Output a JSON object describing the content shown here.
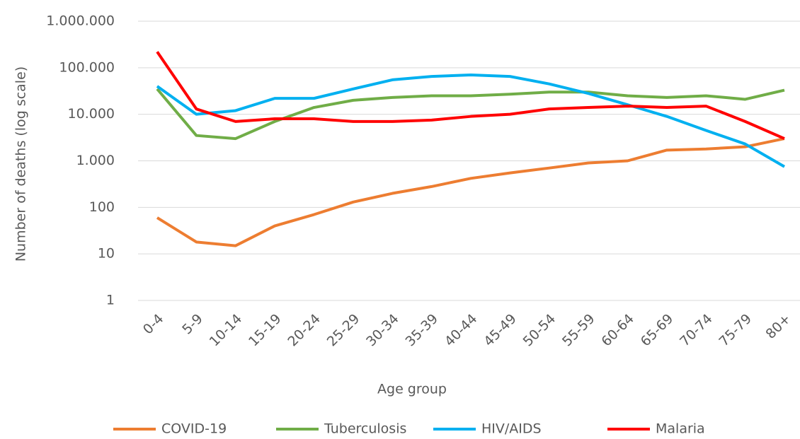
{
  "chart_data": {
    "type": "line",
    "x_label": "Age group",
    "y_label": "Number of deaths (log scale)",
    "categories": [
      "0-4",
      "5-9",
      "10-14",
      "15-19",
      "20-24",
      "25-29",
      "30-34",
      "35-39",
      "40-44",
      "45-49",
      "50-54",
      "55-59",
      "60-64",
      "65-69",
      "70-74",
      "75-79",
      "80+"
    ],
    "series": [
      {
        "name": "COVID-19",
        "color": "#ed7d31",
        "values": [
          60,
          18,
          15,
          40,
          70,
          130,
          200,
          280,
          420,
          550,
          700,
          900,
          1000,
          1700,
          1800,
          2000,
          3000
        ]
      },
      {
        "name": "Tuberculosis",
        "color": "#70ad47",
        "values": [
          35000,
          3500,
          3000,
          7000,
          14000,
          20000,
          23000,
          25000,
          25000,
          27000,
          30000,
          30000,
          25000,
          23000,
          25000,
          21000,
          33000
        ]
      },
      {
        "name": "HIV/AIDS",
        "color": "#00b0f0",
        "values": [
          40000,
          10000,
          12000,
          22000,
          22000,
          35000,
          55000,
          65000,
          70000,
          65000,
          45000,
          28000,
          16000,
          9000,
          4500,
          2300,
          750
        ]
      },
      {
        "name": "Malaria",
        "color": "#ff0000",
        "values": [
          220000,
          13000,
          7000,
          8000,
          8000,
          7000,
          7000,
          7500,
          9000,
          10000,
          13000,
          14000,
          15000,
          14000,
          15000,
          7000,
          3000
        ]
      }
    ],
    "yscale": "log",
    "ylim": [
      1,
      1000000
    ],
    "yticks": [
      1,
      10,
      100,
      {
        "value": 1000,
        "label": "1.000"
      },
      {
        "value": 10000,
        "label": "10.000"
      },
      {
        "value": 100000,
        "label": "100.000"
      },
      {
        "value": 1000000,
        "label": "1.000.000"
      }
    ],
    "grid": true,
    "legend": "bottom"
  }
}
